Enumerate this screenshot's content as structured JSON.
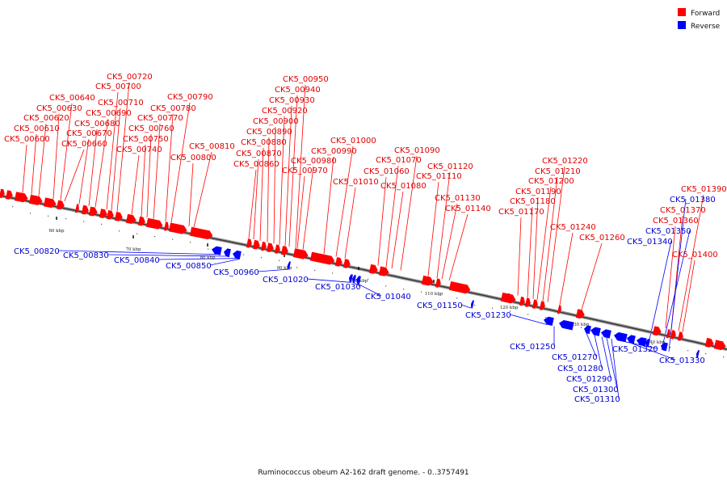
{
  "legend": {
    "forward": {
      "label": "Forward",
      "color": "#ff0000"
    },
    "reverse": {
      "label": "Reverse",
      "color": "#0000ff"
    }
  },
  "caption": "Ruminococcus obeum A2-162 draft genome. - 0..3757491",
  "ticks": [
    "60 kbp",
    "70 kbp",
    "80 kbp",
    "90 kbp",
    "100 kbp",
    "110 kbp",
    "120 kbp",
    "130 kbp",
    "140 kbp"
  ],
  "forward_genes": [
    "CK5_00600",
    "CK5_00610",
    "CK5_00620",
    "CK5_00630",
    "CK5_00640",
    "CK5_00660",
    "CK5_00670",
    "CK5_00680",
    "CK5_00690",
    "CK5_00700",
    "CK5_00710",
    "CK5_00720",
    "CK5_00740",
    "CK5_00750",
    "CK5_00760",
    "CK5_00770",
    "CK5_00780",
    "CK5_00790",
    "CK5_00800",
    "CK5_00810",
    "CK5_00860",
    "CK5_00870",
    "CK5_00880",
    "CK5_00890",
    "CK5_00900",
    "CK5_00920",
    "CK5_00930",
    "CK5_00940",
    "CK5_00950",
    "CK5_00970",
    "CK5_00980",
    "CK5_00990",
    "CK5_01000",
    "CK5_01010",
    "CK5_01060",
    "CK5_01070",
    "CK5_01080",
    "CK5_01090",
    "CK5_01110",
    "CK5_01120",
    "CK5_01130",
    "CK5_01140",
    "CK5_01170",
    "CK5_01180",
    "CK5_01190",
    "CK5_01200",
    "CK5_01210",
    "CK5_01220",
    "CK5_01240",
    "CK5_01260",
    "CK5_01360",
    "CK5_01370",
    "CK5_01390",
    "CK5_01400"
  ],
  "reverse_genes": [
    "CK5_00820",
    "CK5_00830",
    "CK5_00840",
    "CK5_00850",
    "CK5_00960",
    "CK5_01020",
    "CK5_01030",
    "CK5_01040",
    "CK5_01150",
    "CK5_01230",
    "CK5_01250",
    "CK5_01270",
    "CK5_01280",
    "CK5_01290",
    "CK5_01300",
    "CK5_01310",
    "CK5_01320",
    "CK5_01330",
    "CK5_01340",
    "CK5_01350",
    "CK5_01380"
  ]
}
